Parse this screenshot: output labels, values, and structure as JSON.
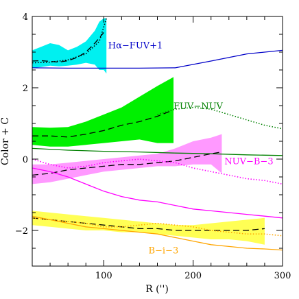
{
  "chart_data": {
    "type": "line",
    "title": "",
    "xlabel": "R ('')",
    "ylabel": "Color + C",
    "xlim": [
      20,
      300
    ],
    "ylim": [
      -3,
      4
    ],
    "xticks": [
      100,
      200,
      300
    ],
    "xtick_labels": [
      "100",
      "200",
      "300"
    ],
    "yticks": [
      -2,
      0,
      2,
      4
    ],
    "ytick_labels": [
      "−2",
      "0",
      "2",
      "4"
    ],
    "grid": false,
    "legend": "none",
    "bands": [
      {
        "group": "halpha",
        "color": "#00f0f0",
        "x": [
          20,
          30,
          40,
          50,
          60,
          70,
          80,
          90,
          95,
          100,
          103
        ],
        "upper": [
          3.05,
          3.15,
          3.25,
          3.2,
          3.05,
          3.15,
          3.3,
          3.6,
          3.85,
          3.95,
          3.95
        ],
        "lower": [
          2.55,
          2.58,
          2.62,
          2.6,
          2.62,
          2.65,
          2.7,
          2.65,
          2.5,
          2.5,
          2.4
        ]
      },
      {
        "group": "fuvnuv",
        "color": "#00f000",
        "x": [
          20,
          40,
          60,
          80,
          100,
          120,
          140,
          160,
          178
        ],
        "upper": [
          0.9,
          0.88,
          0.9,
          1.05,
          1.25,
          1.45,
          1.75,
          2.05,
          2.3
        ],
        "lower": [
          0.4,
          0.35,
          0.35,
          0.4,
          0.45,
          0.5,
          0.55,
          0.45,
          0.45
        ]
      },
      {
        "group": "nuvb",
        "color": "#ff99ff",
        "x": [
          20,
          40,
          60,
          80,
          100,
          120,
          140,
          160,
          180,
          200,
          220,
          232
        ],
        "upper": [
          -0.15,
          -0.15,
          -0.1,
          -0.05,
          0.0,
          0.05,
          0.1,
          0.15,
          0.3,
          0.5,
          0.6,
          0.7
        ],
        "lower": [
          -0.7,
          -0.65,
          -0.55,
          -0.45,
          -0.35,
          -0.3,
          -0.25,
          -0.2,
          -0.2,
          -0.15,
          -0.15,
          -0.4
        ]
      },
      {
        "group": "bi",
        "color": "#ffff55",
        "x": [
          20,
          40,
          60,
          80,
          100,
          120,
          140,
          160,
          180,
          200,
          220,
          240,
          260,
          280
        ],
        "upper": [
          -1.45,
          -1.5,
          -1.55,
          -1.6,
          -1.65,
          -1.7,
          -1.75,
          -1.8,
          -1.85,
          -1.85,
          -1.8,
          -1.75,
          -1.7,
          -1.65
        ],
        "lower": [
          -1.85,
          -1.9,
          -1.95,
          -2.0,
          -2.0,
          -2.05,
          -2.05,
          -2.1,
          -2.15,
          -2.2,
          -2.25,
          -2.25,
          -2.3,
          -2.4
        ]
      }
    ],
    "series": [
      {
        "group": "halpha",
        "style": "dashed",
        "color": "#000000",
        "x": [
          20,
          30,
          40,
          50,
          60,
          70,
          80,
          90,
          100
        ],
        "y": [
          2.75,
          2.76,
          2.74,
          2.72,
          2.76,
          2.85,
          3.0,
          3.25,
          3.55
        ]
      },
      {
        "group": "halpha",
        "style": "dotted",
        "color": "#000000",
        "x": [
          20,
          40,
          60,
          80,
          95,
          103
        ],
        "y": [
          2.7,
          2.72,
          2.78,
          2.95,
          3.3,
          3.95
        ]
      },
      {
        "group": "halpha",
        "style": "solid",
        "color": "#0000c8",
        "x": [
          20,
          60,
          100,
          140,
          180,
          220,
          260,
          300
        ],
        "y": [
          2.56,
          2.55,
          2.55,
          2.55,
          2.56,
          2.75,
          2.95,
          3.05
        ]
      },
      {
        "group": "fuvnuv",
        "style": "dashed",
        "color": "#000000",
        "x": [
          20,
          40,
          60,
          80,
          100,
          120,
          140,
          160,
          175
        ],
        "y": [
          0.65,
          0.65,
          0.62,
          0.7,
          0.8,
          0.95,
          1.05,
          1.2,
          1.35
        ]
      },
      {
        "group": "fuvnuv",
        "style": "dotted",
        "color": "#008000",
        "x": [
          160,
          180,
          200,
          220,
          240,
          260,
          280,
          300
        ],
        "y": [
          1.25,
          1.4,
          1.45,
          1.4,
          1.25,
          1.1,
          0.95,
          0.85
        ]
      },
      {
        "group": "fuvnuv",
        "style": "solid",
        "color": "#008000",
        "x": [
          20,
          60,
          100,
          140,
          180,
          220,
          260,
          300
        ],
        "y": [
          0.3,
          0.25,
          0.22,
          0.2,
          0.17,
          0.15,
          0.12,
          0.1
        ]
      },
      {
        "group": "nuvb",
        "style": "dashed",
        "color": "#000000",
        "x": [
          20,
          40,
          60,
          80,
          100,
          120,
          140,
          160,
          180,
          200,
          220,
          232
        ],
        "y": [
          -0.45,
          -0.4,
          -0.3,
          -0.25,
          -0.2,
          -0.15,
          -0.15,
          -0.1,
          -0.05,
          0.05,
          0.15,
          0.2
        ]
      },
      {
        "group": "nuvb",
        "style": "dotted",
        "color": "#ff00ff",
        "x": [
          20,
          40,
          60,
          80,
          100,
          120,
          140,
          160,
          180,
          200,
          220,
          240,
          260,
          280,
          300
        ],
        "y": [
          0.0,
          -0.15,
          -0.25,
          -0.2,
          -0.1,
          -0.05,
          0.0,
          -0.05,
          -0.1,
          -0.25,
          -0.35,
          -0.45,
          -0.55,
          -0.6,
          -0.7
        ]
      },
      {
        "group": "nuvb",
        "style": "solid",
        "color": "#ff00ff",
        "x": [
          20,
          40,
          60,
          80,
          100,
          120,
          140,
          160,
          180,
          200,
          220,
          240,
          260,
          280,
          300
        ],
        "y": [
          -0.25,
          -0.35,
          -0.5,
          -0.7,
          -0.9,
          -1.05,
          -1.15,
          -1.2,
          -1.3,
          -1.4,
          -1.45,
          -1.5,
          -1.55,
          -1.6,
          -1.65
        ]
      },
      {
        "group": "bi",
        "style": "dashed",
        "color": "#000000",
        "x": [
          20,
          40,
          60,
          80,
          100,
          120,
          140,
          160,
          180,
          200,
          220,
          240,
          260,
          280
        ],
        "y": [
          -1.65,
          -1.7,
          -1.75,
          -1.8,
          -1.85,
          -1.9,
          -1.95,
          -1.95,
          -2.0,
          -2.0,
          -2.0,
          -2.0,
          -2.0,
          -1.95
        ]
      },
      {
        "group": "bi",
        "style": "dotted",
        "color": "#ffa500",
        "x": [
          20,
          40,
          60,
          80,
          100,
          120,
          140,
          160,
          180,
          200,
          220,
          240,
          260,
          280,
          300
        ],
        "y": [
          -1.65,
          -1.7,
          -1.75,
          -1.8,
          -1.9,
          -1.9,
          -1.85,
          -1.8,
          -1.85,
          -1.9,
          -2.0,
          -2.05,
          -2.1,
          -2.1,
          -2.15
        ]
      },
      {
        "group": "bi",
        "style": "solid",
        "color": "#ffa500",
        "x": [
          20,
          40,
          60,
          80,
          100,
          120,
          140,
          160,
          180,
          200,
          220,
          240,
          260,
          280,
          300
        ],
        "y": [
          -1.6,
          -1.7,
          -1.8,
          -1.9,
          -1.95,
          -2.0,
          -2.05,
          -2.1,
          -2.2,
          -2.3,
          -2.4,
          -2.45,
          -2.5,
          -2.52,
          -2.55
        ]
      }
    ],
    "annotations": [
      {
        "text": "Hα−FUV+1",
        "color": "#0000c8",
        "x": 105,
        "y": 3.2
      },
      {
        "text": "FUV−NUV",
        "color": "#008000",
        "x": 178,
        "y": 1.5
      },
      {
        "text": "NUV−B−3",
        "color": "#ff00ff",
        "x": 235,
        "y": -0.05
      },
      {
        "text": "B−i−3",
        "color": "#ffa500",
        "x": 150,
        "y": -2.55
      }
    ]
  }
}
